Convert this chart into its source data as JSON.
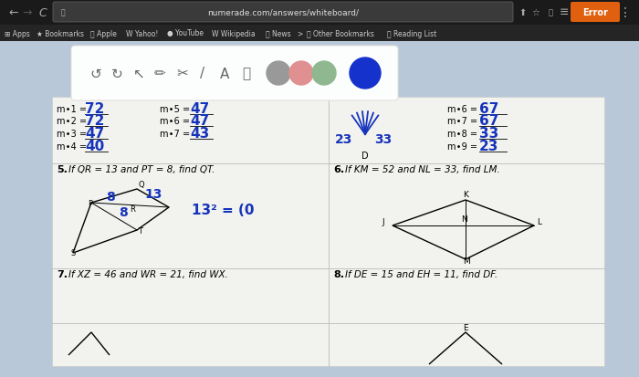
{
  "page_bg": "#b8c8d8",
  "browser_top_color": "#1e1e1e",
  "bookmarks_bar_color": "#252525",
  "url_text": "numerade.com/answers/whiteboard/",
  "paper_color": "#f2f2ee",
  "blue": "#1533bb",
  "toolbar_bg": "#f0f0f0",
  "circle_colors": [
    "#999999",
    "#e09090",
    "#90b890",
    "#1533cc"
  ],
  "bm_items": [
    "Apps",
    "Bookmarks",
    "Apple",
    "Yahoo!",
    "YouTube",
    "Wikipedia",
    "News",
    ">",
    "Other Bookmarks",
    "Reading List"
  ],
  "left_labels": [
    "m∙1 =",
    "m∙2 =",
    "m∙3 =",
    "m∙4 ="
  ],
  "left_answers": [
    "72",
    "72",
    "47",
    "40"
  ],
  "mid_labels": [
    "m∙5 =",
    "m∙6 =",
    "m∙7 ="
  ],
  "mid_answers": [
    "47",
    "47",
    "43"
  ],
  "right_labels": [
    "m∙6 =",
    "m∙7 =",
    "m∙8 =",
    "m∙9 ="
  ],
  "right_answers": [
    "67",
    "67",
    "33",
    "23"
  ],
  "q5_text": "5.  If QR = 13 and PT = 8, find QT.",
  "q6_text": "6.  If KM = 52 and NL = 33, find LM.",
  "q7_text": "7.  If XZ = 46 and WR = 21, find WX.",
  "q8_text": "8.  If DE = 15 and EH = 11, find DF."
}
